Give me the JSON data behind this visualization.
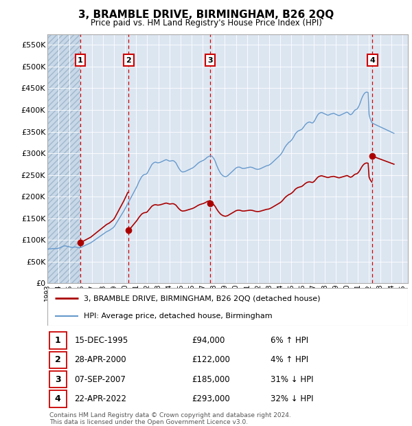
{
  "title": "3, BRAMBLE DRIVE, BIRMINGHAM, B26 2QQ",
  "subtitle": "Price paid vs. HM Land Registry's House Price Index (HPI)",
  "ylim": [
    0,
    575000
  ],
  "yticks": [
    0,
    50000,
    100000,
    150000,
    200000,
    250000,
    300000,
    350000,
    400000,
    450000,
    500000,
    550000
  ],
  "xlim_start": 1993.0,
  "xlim_end": 2025.5,
  "background_color": "#ffffff",
  "plot_bg_color": "#dce6f1",
  "hatch_color": "#b8c8dc",
  "grid_color": "#ffffff",
  "sale_color": "#aa0000",
  "hpi_color": "#6699cc",
  "label_box_color": "#cc0000",
  "dashed_line_color": "#cc0000",
  "sales": [
    {
      "year": 1995.958,
      "price": 94000,
      "label": "1"
    },
    {
      "year": 2000.331,
      "price": 122000,
      "label": "2"
    },
    {
      "year": 2007.688,
      "price": 185000,
      "label": "3"
    },
    {
      "year": 2022.306,
      "price": 293000,
      "label": "4"
    }
  ],
  "table_rows": [
    {
      "num": "1",
      "date": "15-DEC-1995",
      "price": "£94,000",
      "pct": "6% ↑ HPI"
    },
    {
      "num": "2",
      "date": "28-APR-2000",
      "price": "£122,000",
      "pct": "4% ↑ HPI"
    },
    {
      "num": "3",
      "date": "07-SEP-2007",
      "price": "£185,000",
      "pct": "31% ↓ HPI"
    },
    {
      "num": "4",
      "date": "22-APR-2022",
      "price": "£293,000",
      "pct": "32% ↓ HPI"
    }
  ],
  "legend_sale_label": "3, BRAMBLE DRIVE, BIRMINGHAM, B26 2QQ (detached house)",
  "legend_hpi_label": "HPI: Average price, detached house, Birmingham",
  "footer": "Contains HM Land Registry data © Crown copyright and database right 2024.\nThis data is licensed under the Open Government Licence v3.0.",
  "hpi_data": {
    "years": [
      1993.0,
      1993.083,
      1993.167,
      1993.25,
      1993.333,
      1993.417,
      1993.5,
      1993.583,
      1993.667,
      1993.75,
      1993.833,
      1993.917,
      1994.0,
      1994.083,
      1994.167,
      1994.25,
      1994.333,
      1994.417,
      1994.5,
      1994.583,
      1994.667,
      1994.75,
      1994.833,
      1994.917,
      1995.0,
      1995.083,
      1995.167,
      1995.25,
      1995.333,
      1995.417,
      1995.5,
      1995.583,
      1995.667,
      1995.75,
      1995.833,
      1995.917,
      1996.0,
      1996.083,
      1996.167,
      1996.25,
      1996.333,
      1996.417,
      1996.5,
      1996.583,
      1996.667,
      1996.75,
      1996.833,
      1996.917,
      1997.0,
      1997.083,
      1997.167,
      1997.25,
      1997.333,
      1997.417,
      1997.5,
      1997.583,
      1997.667,
      1997.75,
      1997.833,
      1997.917,
      1998.0,
      1998.083,
      1998.167,
      1998.25,
      1998.333,
      1998.417,
      1998.5,
      1998.583,
      1998.667,
      1998.75,
      1998.833,
      1998.917,
      1999.0,
      1999.083,
      1999.167,
      1999.25,
      1999.333,
      1999.417,
      1999.5,
      1999.583,
      1999.667,
      1999.75,
      1999.833,
      1999.917,
      2000.0,
      2000.083,
      2000.167,
      2000.25,
      2000.333,
      2000.417,
      2000.5,
      2000.583,
      2000.667,
      2000.75,
      2000.833,
      2000.917,
      2001.0,
      2001.083,
      2001.167,
      2001.25,
      2001.333,
      2001.417,
      2001.5,
      2001.583,
      2001.667,
      2001.75,
      2001.833,
      2001.917,
      2002.0,
      2002.083,
      2002.167,
      2002.25,
      2002.333,
      2002.417,
      2002.5,
      2002.583,
      2002.667,
      2002.75,
      2002.833,
      2002.917,
      2003.0,
      2003.083,
      2003.167,
      2003.25,
      2003.333,
      2003.417,
      2003.5,
      2003.583,
      2003.667,
      2003.75,
      2003.833,
      2003.917,
      2004.0,
      2004.083,
      2004.167,
      2004.25,
      2004.333,
      2004.417,
      2004.5,
      2004.583,
      2004.667,
      2004.75,
      2004.833,
      2004.917,
      2005.0,
      2005.083,
      2005.167,
      2005.25,
      2005.333,
      2005.417,
      2005.5,
      2005.583,
      2005.667,
      2005.75,
      2005.833,
      2005.917,
      2006.0,
      2006.083,
      2006.167,
      2006.25,
      2006.333,
      2006.417,
      2006.5,
      2006.583,
      2006.667,
      2006.75,
      2006.833,
      2006.917,
      2007.0,
      2007.083,
      2007.167,
      2007.25,
      2007.333,
      2007.417,
      2007.5,
      2007.583,
      2007.667,
      2007.75,
      2007.833,
      2007.917,
      2008.0,
      2008.083,
      2008.167,
      2008.25,
      2008.333,
      2008.417,
      2008.5,
      2008.583,
      2008.667,
      2008.75,
      2008.833,
      2008.917,
      2009.0,
      2009.083,
      2009.167,
      2009.25,
      2009.333,
      2009.417,
      2009.5,
      2009.583,
      2009.667,
      2009.75,
      2009.833,
      2009.917,
      2010.0,
      2010.083,
      2010.167,
      2010.25,
      2010.333,
      2010.417,
      2010.5,
      2010.583,
      2010.667,
      2010.75,
      2010.833,
      2010.917,
      2011.0,
      2011.083,
      2011.167,
      2011.25,
      2011.333,
      2011.417,
      2011.5,
      2011.583,
      2011.667,
      2011.75,
      2011.833,
      2011.917,
      2012.0,
      2012.083,
      2012.167,
      2012.25,
      2012.333,
      2012.417,
      2012.5,
      2012.583,
      2012.667,
      2012.75,
      2012.833,
      2012.917,
      2013.0,
      2013.083,
      2013.167,
      2013.25,
      2013.333,
      2013.417,
      2013.5,
      2013.583,
      2013.667,
      2013.75,
      2013.833,
      2013.917,
      2014.0,
      2014.083,
      2014.167,
      2014.25,
      2014.333,
      2014.417,
      2014.5,
      2014.583,
      2014.667,
      2014.75,
      2014.833,
      2014.917,
      2015.0,
      2015.083,
      2015.167,
      2015.25,
      2015.333,
      2015.417,
      2015.5,
      2015.583,
      2015.667,
      2015.75,
      2015.833,
      2015.917,
      2016.0,
      2016.083,
      2016.167,
      2016.25,
      2016.333,
      2016.417,
      2016.5,
      2016.583,
      2016.667,
      2016.75,
      2016.833,
      2016.917,
      2017.0,
      2017.083,
      2017.167,
      2017.25,
      2017.333,
      2017.417,
      2017.5,
      2017.583,
      2017.667,
      2017.75,
      2017.833,
      2017.917,
      2018.0,
      2018.083,
      2018.167,
      2018.25,
      2018.333,
      2018.417,
      2018.5,
      2018.583,
      2018.667,
      2018.75,
      2018.833,
      2018.917,
      2019.0,
      2019.083,
      2019.167,
      2019.25,
      2019.333,
      2019.417,
      2019.5,
      2019.583,
      2019.667,
      2019.75,
      2019.833,
      2019.917,
      2020.0,
      2020.083,
      2020.167,
      2020.25,
      2020.333,
      2020.417,
      2020.5,
      2020.583,
      2020.667,
      2020.75,
      2020.833,
      2020.917,
      2021.0,
      2021.083,
      2021.167,
      2021.25,
      2021.333,
      2021.417,
      2021.5,
      2021.583,
      2021.667,
      2021.75,
      2021.833,
      2021.917,
      2022.0,
      2022.083,
      2022.167,
      2022.25,
      2022.333,
      2022.417,
      2022.5,
      2022.583,
      2022.667,
      2022.75,
      2022.833,
      2022.917,
      2023.0,
      2023.083,
      2023.167,
      2023.25,
      2023.333,
      2023.417,
      2023.5,
      2023.583,
      2023.667,
      2023.75,
      2023.833,
      2023.917,
      2024.0,
      2024.083,
      2024.167,
      2024.25
    ],
    "values": [
      79000,
      79200,
      79400,
      79600,
      79800,
      80000,
      80100,
      80000,
      79800,
      79900,
      80200,
      80500,
      81000,
      81500,
      82500,
      83500,
      84500,
      85500,
      86000,
      86500,
      86000,
      85500,
      85000,
      84500,
      84000,
      83500,
      83000,
      82500,
      83000,
      83500,
      84000,
      83500,
      83000,
      82500,
      82000,
      81500,
      82500,
      83500,
      84500,
      85500,
      86500,
      87500,
      88500,
      89500,
      90500,
      91500,
      92500,
      93500,
      95000,
      96500,
      98000,
      99500,
      101000,
      102500,
      104000,
      105500,
      107000,
      108500,
      110000,
      111500,
      113000,
      114500,
      116000,
      117500,
      119000,
      120000,
      121000,
      122000,
      123500,
      125000,
      126500,
      128000,
      130000,
      133000,
      136500,
      140000,
      143500,
      147000,
      150500,
      154000,
      157500,
      161000,
      164500,
      168000,
      172000,
      176000,
      180000,
      184000,
      188000,
      192000,
      196000,
      200000,
      204000,
      208000,
      212000,
      216000,
      220000,
      224000,
      229000,
      234000,
      238000,
      242000,
      246000,
      248000,
      250000,
      251000,
      251500,
      252000,
      254000,
      258000,
      262000,
      266000,
      270000,
      274000,
      276000,
      278000,
      279000,
      279500,
      279000,
      278000,
      278000,
      278500,
      279000,
      280000,
      281000,
      282000,
      283000,
      284000,
      285000,
      285000,
      284000,
      283000,
      282000,
      282000,
      282500,
      283000,
      283000,
      282000,
      280000,
      278000,
      274000,
      270000,
      266000,
      263000,
      260000,
      258000,
      257000,
      257000,
      257500,
      258000,
      259000,
      260000,
      261000,
      262000,
      263000,
      264000,
      265000,
      266000,
      267500,
      269000,
      271000,
      273000,
      275000,
      277000,
      278500,
      280000,
      281000,
      282000,
      283000,
      284000,
      285500,
      287000,
      289000,
      291000,
      292000,
      293000,
      294000,
      294000,
      293000,
      291000,
      288000,
      284000,
      279000,
      273000,
      268000,
      263000,
      259000,
      255000,
      252000,
      250000,
      248000,
      247000,
      246000,
      246000,
      247000,
      248000,
      250000,
      252000,
      254000,
      256000,
      258000,
      260000,
      262000,
      264000,
      266000,
      267000,
      268000,
      268000,
      268000,
      267000,
      266000,
      265000,
      265000,
      265000,
      265500,
      266000,
      266500,
      267000,
      267500,
      268000,
      268000,
      267500,
      267000,
      266000,
      265000,
      264000,
      263500,
      263000,
      263000,
      263500,
      264000,
      265000,
      266000,
      267000,
      268000,
      269000,
      270000,
      271000,
      271500,
      272000,
      273000,
      274500,
      276000,
      278000,
      280000,
      282000,
      284000,
      286000,
      288000,
      290000,
      292000,
      294000,
      296000,
      299000,
      302000,
      306000,
      310000,
      314000,
      317000,
      320000,
      322000,
      325000,
      326000,
      328000,
      330000,
      333000,
      336000,
      340000,
      344000,
      347000,
      349000,
      351000,
      352000,
      353000,
      354000,
      355000,
      357000,
      360000,
      363000,
      366000,
      368000,
      370000,
      371000,
      372000,
      372000,
      371000,
      370000,
      370000,
      372000,
      375000,
      379000,
      383000,
      387000,
      390000,
      392000,
      393000,
      394000,
      394000,
      393000,
      392000,
      391000,
      390000,
      389000,
      388000,
      388000,
      389000,
      390000,
      391000,
      391000,
      392000,
      392000,
      391000,
      390000,
      389000,
      388000,
      387000,
      387000,
      388000,
      389000,
      390000,
      391000,
      392000,
      393000,
      394000,
      395000,
      394000,
      392000,
      390000,
      389000,
      390000,
      392000,
      395000,
      398000,
      400000,
      401000,
      402000,
      405000,
      409000,
      414000,
      420000,
      426000,
      431000,
      435000,
      438000,
      440000,
      441000,
      441000,
      440000,
      390000,
      381000,
      376000,
      371000,
      369000,
      368000,
      367000,
      366000,
      365000,
      364000,
      363000,
      362000,
      361000,
      360000,
      359000,
      358000,
      357000,
      356000,
      355000,
      354000,
      353000,
      352000,
      351000,
      350000,
      349000,
      348000,
      347000,
      346000
    ]
  }
}
